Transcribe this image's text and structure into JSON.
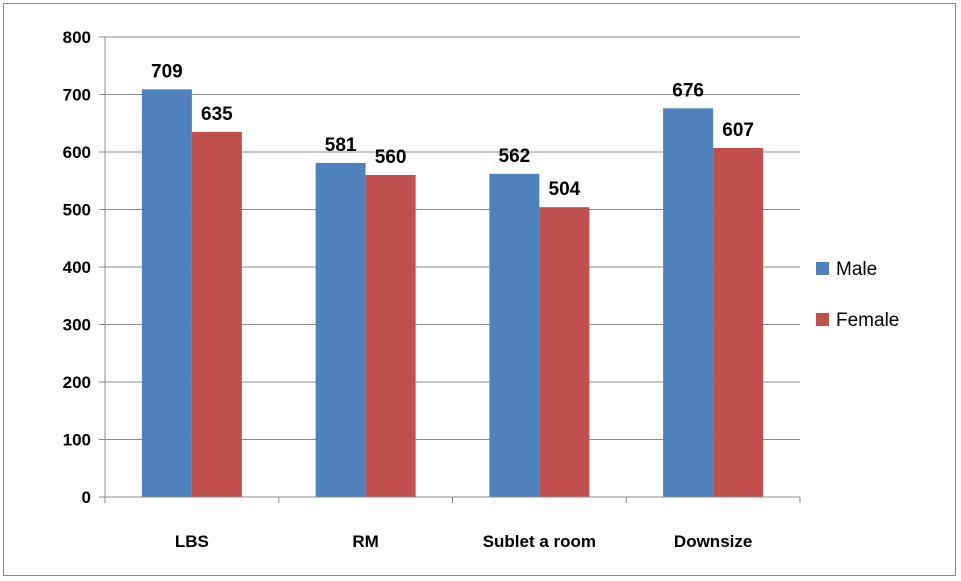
{
  "chart_data": {
    "type": "bar",
    "title": "",
    "xlabel": "",
    "ylabel": "",
    "categories": [
      "LBS",
      "RM",
      "Sublet a room",
      "Downsize"
    ],
    "series": [
      {
        "name": "Male",
        "values": [
          709,
          581,
          562,
          676
        ],
        "color": "#4f81bd"
      },
      {
        "name": "Female",
        "values": [
          635,
          560,
          504,
          607
        ],
        "color": "#c0504d"
      }
    ],
    "ylim": [
      0,
      800
    ],
    "yticks": [
      "0",
      "100",
      "200",
      "300",
      "400",
      "500",
      "600",
      "700",
      "800"
    ],
    "grid": true,
    "legend_position": "right",
    "data_labels": true
  }
}
